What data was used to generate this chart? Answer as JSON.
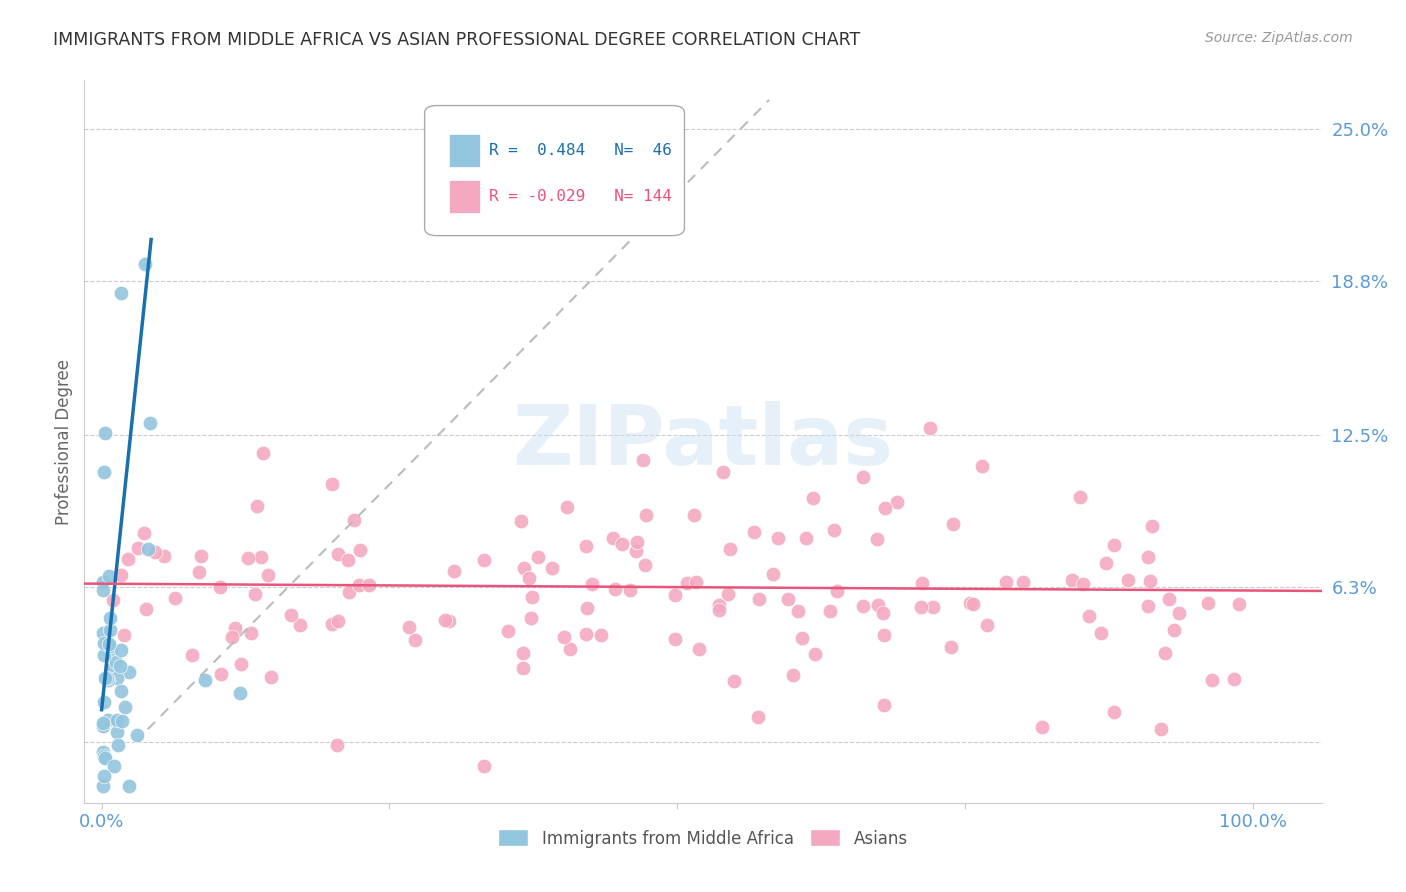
{
  "title": "IMMIGRANTS FROM MIDDLE AFRICA VS ASIAN PROFESSIONAL DEGREE CORRELATION CHART",
  "source": "Source: ZipAtlas.com",
  "ylabel": "Professional Degree",
  "y_tick_vals": [
    0.0,
    0.063,
    0.125,
    0.188,
    0.25
  ],
  "y_tick_labels": [
    "",
    "6.3%",
    "12.5%",
    "18.8%",
    "25.0%"
  ],
  "x_tick_vals": [
    0.0,
    0.25,
    0.5,
    0.75,
    1.0
  ],
  "x_tick_labels": [
    "0.0%",
    "",
    "",
    "",
    "100.0%"
  ],
  "watermark_text": "ZIPatlas",
  "blue_color": "#92c5de",
  "pink_color": "#f4a9c0",
  "trendline_blue_color": "#1a6faf",
  "trendline_pink_color": "#e8547a",
  "trendline_gray_color": "#bbbbbb",
  "background_color": "#ffffff",
  "grid_color": "#cccccc",
  "title_color": "#333333",
  "axis_tick_color": "#5b9bd5",
  "ylabel_color": "#666666",
  "source_color": "#999999",
  "legend_r1_color": "#1a6faf",
  "legend_r2_color": "#e8547a",
  "legend_border_color": "#aaaaaa",
  "ylim": [
    -0.025,
    0.27
  ],
  "xlim": [
    -0.015,
    1.06
  ]
}
